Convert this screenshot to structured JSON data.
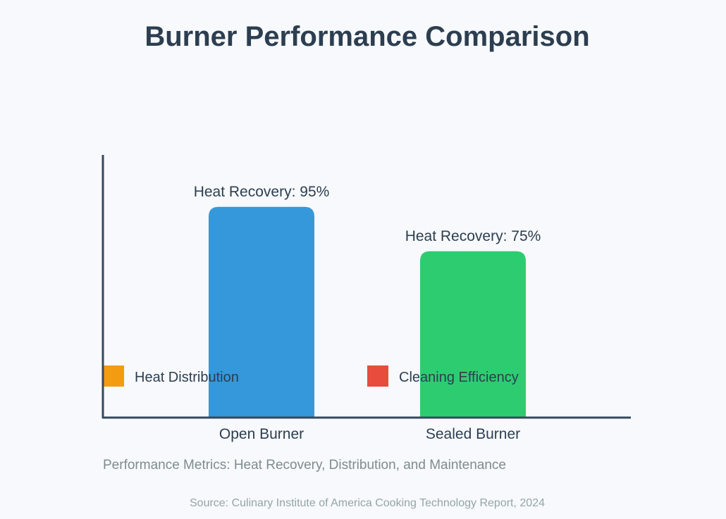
{
  "title": "Burner Performance Comparison",
  "subtitle": "Performance Metrics: Heat Recovery, Distribution, and Maintenance",
  "source": "Source: Culinary Institute of America Cooking Technology Report, 2024",
  "chart_data": {
    "type": "bar",
    "categories": [
      "Open Burner",
      "Sealed Burner"
    ],
    "series": [
      {
        "metric": "Heat Recovery",
        "values": [
          95,
          75
        ],
        "colors": [
          "#3498db",
          "#2ecc71"
        ],
        "data_labels": [
          "Heat Recovery: 95%",
          "Heat Recovery: 75%"
        ]
      }
    ],
    "ylim": [
      0,
      100
    ],
    "grid": false,
    "legend": [
      {
        "label": "Heat Distribution",
        "color": "#f39c12"
      },
      {
        "label": "Cleaning Efficiency",
        "color": "#e74c3c"
      }
    ],
    "legend_placement": "bottom, inside plot area",
    "axis_color": "#34495e",
    "text_color": "#2c3e50"
  }
}
